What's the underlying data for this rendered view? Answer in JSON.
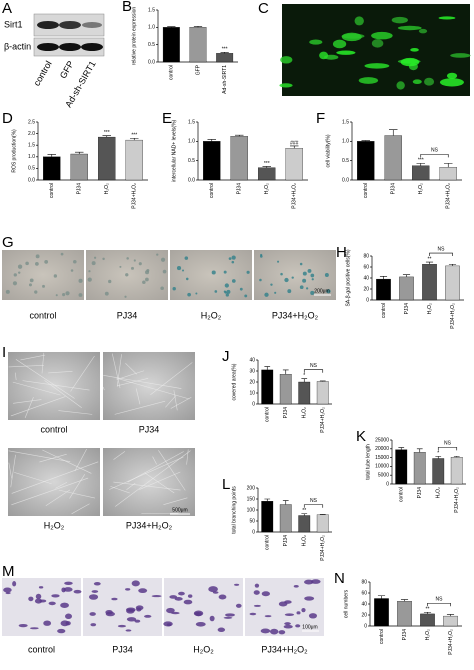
{
  "blot": {
    "letter": "A",
    "rows": [
      "Sirt1",
      "β-actin"
    ],
    "lanes": [
      "control",
      "GFP",
      "Ad-sh-SIRT1"
    ]
  },
  "image_c": {
    "letter": "C"
  },
  "image_g": {
    "letter": "G",
    "labels": [
      "control",
      "PJ34",
      "H₂O₂",
      "PJ34+H₂O₂"
    ],
    "scale": "200μm"
  },
  "image_i": {
    "letter": "I",
    "labels": [
      "control",
      "PJ34",
      "H₂O₂",
      "PJ34+H₂O₂"
    ],
    "scale": "500μm"
  },
  "image_m": {
    "letter": "M",
    "labels": [
      "control",
      "PJ34",
      "H₂O₂",
      "PJ34+H₂O₂"
    ],
    "scale": "100μm"
  },
  "chart_data": [
    {
      "type": "bar",
      "panel_label": "B",
      "y_label": "relative protein expression",
      "categories": [
        "control",
        "GFP",
        "Ad-sh-SIRT1"
      ],
      "values": [
        1.0,
        1.0,
        0.25
      ],
      "errors": [
        0.02,
        0.03,
        0.03
      ],
      "annotations": [
        null,
        null,
        "***"
      ],
      "colors": [
        "#000000",
        "#999999",
        "#555555"
      ],
      "ylim": [
        0,
        1.5
      ],
      "yticks": [
        {
          "value": 0,
          "label": "0.0"
        },
        0.5,
        {
          "value": 1,
          "label": "1.0"
        },
        1.5
      ]
    },
    {
      "type": "bar",
      "panel_label": "D",
      "y_label": "ROS production(%)",
      "categories": [
        "control",
        "PJ34",
        "H₂O₂",
        "PJ34+H₂O₂"
      ],
      "values": [
        1.0,
        1.12,
        1.85,
        1.72
      ],
      "errors": [
        0.1,
        0.08,
        0.06,
        0.08
      ],
      "annotations": [
        null,
        null,
        "***",
        "***"
      ],
      "colors": [
        "#000000",
        "#999999",
        "#555555",
        "#cccccc"
      ],
      "ylim": [
        0,
        2.5
      ],
      "yticks": [
        {
          "value": 0,
          "label": "0.0"
        },
        0.5,
        {
          "value": 1,
          "label": "1.0"
        },
        1.5,
        {
          "value": 2,
          "label": "2.0"
        },
        2.5
      ]
    },
    {
      "type": "bar",
      "panel_label": "E",
      "y_label": "intercellular NAD+ levels(%)",
      "categories": [
        "control",
        "PJ34",
        "H₂O₂",
        "PJ34+H₂O₂"
      ],
      "values": [
        1.0,
        1.13,
        0.32,
        0.82
      ],
      "errors": [
        0.05,
        0.03,
        0.03,
        0.06
      ],
      "annotations": [
        null,
        null,
        "***",
        "###"
      ],
      "colors": [
        "#000000",
        "#999999",
        "#555555",
        "#cccccc"
      ],
      "ylim": [
        0,
        1.5
      ],
      "yticks": [
        {
          "value": 0,
          "label": "0.0"
        },
        0.5,
        {
          "value": 1,
          "label": "1.0"
        },
        1.5
      ]
    },
    {
      "type": "bar",
      "panel_label": "F",
      "y_label": "cell viability(%)",
      "categories": [
        "control",
        "PJ34",
        "H₂O₂",
        "PJ34+H₂O₂"
      ],
      "values": [
        1.0,
        1.15,
        0.37,
        0.33
      ],
      "errors": [
        0.02,
        0.15,
        0.06,
        0.1
      ],
      "annotations": [
        null,
        null,
        "***",
        null
      ],
      "bracket_label": "NS",
      "colors": [
        "#000000",
        "#999999",
        "#555555",
        "#cccccc"
      ],
      "ylim": [
        0,
        1.5
      ],
      "yticks": [
        {
          "value": 0,
          "label": "0.0"
        },
        0.5,
        {
          "value": 1,
          "label": "1.0"
        },
        1.5
      ]
    },
    {
      "type": "bar",
      "panel_label": "H",
      "y_label": "SA-β-gal positive cells(%)",
      "categories": [
        "control",
        "PJ34",
        "H₂O₂",
        "PJ34+H₂O₂"
      ],
      "values": [
        38,
        42,
        65,
        62
      ],
      "errors": [
        5,
        4,
        4,
        3
      ],
      "annotations": [
        null,
        null,
        "**",
        null
      ],
      "bracket_label": "NS",
      "colors": [
        "#000000",
        "#999999",
        "#555555",
        "#cccccc"
      ],
      "ylim": [
        0,
        80
      ],
      "yticks": [
        0,
        20,
        40,
        60,
        80
      ]
    },
    {
      "type": "bar",
      "panel_label": "J",
      "y_label": "covered area(%)",
      "categories": [
        "control",
        "PJ34",
        "H₂O₂",
        "PJ34+H₂O₂"
      ],
      "values": [
        31,
        27,
        20,
        20.5
      ],
      "errors": [
        3,
        4,
        3,
        0.5
      ],
      "annotations": [
        null,
        null,
        "*",
        null
      ],
      "bracket_label": "NS",
      "colors": [
        "#000000",
        "#999999",
        "#555555",
        "#cccccc"
      ],
      "ylim": [
        0,
        40
      ],
      "yticks": [
        0,
        10,
        20,
        30,
        40
      ]
    },
    {
      "type": "bar",
      "panel_label": "K",
      "y_label": "total tube length",
      "categories": [
        "control",
        "PJ34",
        "H₂O₂",
        "PJ34+H₂O₂"
      ],
      "values": [
        19500,
        18000,
        14500,
        15200
      ],
      "errors": [
        1200,
        2000,
        1200,
        500
      ],
      "annotations": [
        null,
        null,
        "*",
        null
      ],
      "bracket_label": "NS",
      "colors": [
        "#000000",
        "#999999",
        "#555555",
        "#cccccc"
      ],
      "ylim": [
        0,
        25000
      ],
      "yticks": [
        0,
        5000,
        10000,
        15000,
        20000,
        25000
      ]
    },
    {
      "type": "bar",
      "panel_label": "L",
      "y_label": "total branching points",
      "categories": [
        "control",
        "PJ34",
        "H₂O₂",
        "PJ34+H₂O₂"
      ],
      "values": [
        140,
        125,
        75,
        78
      ],
      "errors": [
        10,
        18,
        8,
        2
      ],
      "annotations": [
        null,
        null,
        "**",
        null
      ],
      "bracket_label": "NS",
      "colors": [
        "#000000",
        "#999999",
        "#555555",
        "#cccccc"
      ],
      "ylim": [
        0,
        200
      ],
      "yticks": [
        0,
        50,
        100,
        150,
        200
      ]
    },
    {
      "type": "bar",
      "panel_label": "N",
      "y_label": "cell numbers",
      "categories": [
        "control",
        "PJ34",
        "H₂O₂",
        "PJ34+H₂O₂"
      ],
      "values": [
        50,
        45,
        22,
        18
      ],
      "errors": [
        5,
        3,
        3,
        3
      ],
      "annotations": [
        null,
        null,
        "**",
        null
      ],
      "bracket_label": "NS",
      "colors": [
        "#000000",
        "#999999",
        "#555555",
        "#cccccc"
      ],
      "ylim": [
        0,
        80
      ],
      "yticks": [
        0,
        20,
        40,
        60,
        80
      ]
    }
  ]
}
